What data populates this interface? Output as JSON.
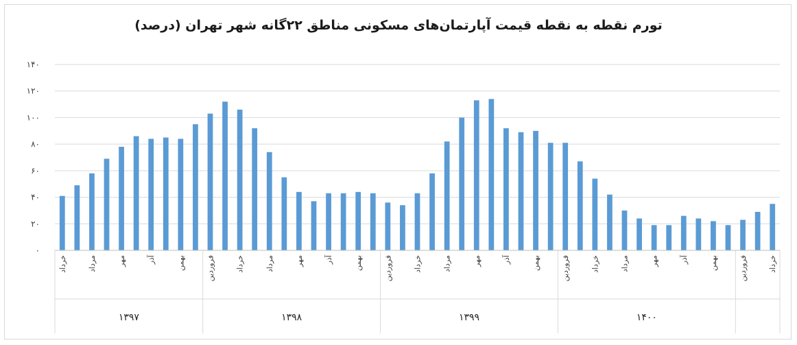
{
  "chart_data": {
    "type": "bar",
    "title": "تورم نقطه به نقطه قیمت آپارتمان‌های مسکونی مناطق ۲۲گانه شهر تهران (درصد)",
    "ylim": [
      0,
      140
    ],
    "yticks": [
      "۰",
      "۲۰",
      "۴۰",
      "۶۰",
      "۸۰",
      "۱۰۰",
      "۱۲۰",
      "۱۴۰"
    ],
    "grid": true,
    "color": "#5b9bd5",
    "values": [
      41,
      49,
      58,
      69,
      78,
      86,
      84,
      85,
      84,
      95,
      103,
      112,
      106,
      92,
      74,
      55,
      44,
      37,
      43,
      43,
      44,
      43,
      36,
      34,
      43,
      58,
      82,
      100,
      113,
      114,
      92,
      89,
      90,
      81,
      81,
      67,
      54,
      42,
      30,
      24,
      19,
      19,
      26,
      24,
      22,
      19,
      23,
      29,
      35
    ],
    "month_labels": [
      {
        "index": 0,
        "text": "خرداد"
      },
      {
        "index": 2,
        "text": "مرداد"
      },
      {
        "index": 4,
        "text": "مهر"
      },
      {
        "index": 6,
        "text": "آذر"
      },
      {
        "index": 8,
        "text": "بهمن"
      },
      {
        "index": 10,
        "text": "فروردین"
      },
      {
        "index": 12,
        "text": "خرداد"
      },
      {
        "index": 14,
        "text": "مرداد"
      },
      {
        "index": 16,
        "text": "مهر"
      },
      {
        "index": 18,
        "text": "آذر"
      },
      {
        "index": 20,
        "text": "بهمن"
      },
      {
        "index": 22,
        "text": "فروردین"
      },
      {
        "index": 24,
        "text": "خرداد"
      },
      {
        "index": 26,
        "text": "مرداد"
      },
      {
        "index": 28,
        "text": "مهر"
      },
      {
        "index": 30,
        "text": "آذر"
      },
      {
        "index": 32,
        "text": "بهمن"
      },
      {
        "index": 34,
        "text": "فروردین"
      },
      {
        "index": 36,
        "text": "خرداد"
      },
      {
        "index": 38,
        "text": "مرداد"
      },
      {
        "index": 40,
        "text": "مهر"
      },
      {
        "index": 42,
        "text": "آذر"
      },
      {
        "index": 44,
        "text": "بهمن"
      },
      {
        "index": 46,
        "text": "فروردین"
      },
      {
        "index": 48,
        "text": "خرداد"
      }
    ],
    "years": [
      {
        "label": "۱۳۹۷",
        "start": 0,
        "end": 9
      },
      {
        "label": "۱۳۹۸",
        "start": 10,
        "end": 21
      },
      {
        "label": "۱۳۹۹",
        "start": 22,
        "end": 33
      },
      {
        "label": "۱۴۰۰",
        "start": 34,
        "end": 45
      },
      {
        "label": "",
        "start": 46,
        "end": 48
      }
    ]
  }
}
